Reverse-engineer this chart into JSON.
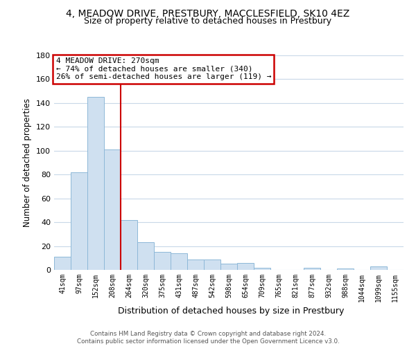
{
  "title": "4, MEADOW DRIVE, PRESTBURY, MACCLESFIELD, SK10 4EZ",
  "subtitle": "Size of property relative to detached houses in Prestbury",
  "xlabel": "Distribution of detached houses by size in Prestbury",
  "ylabel": "Number of detached properties",
  "bar_labels": [
    "41sqm",
    "97sqm",
    "152sqm",
    "208sqm",
    "264sqm",
    "320sqm",
    "375sqm",
    "431sqm",
    "487sqm",
    "542sqm",
    "598sqm",
    "654sqm",
    "709sqm",
    "765sqm",
    "821sqm",
    "877sqm",
    "932sqm",
    "988sqm",
    "1044sqm",
    "1099sqm",
    "1155sqm"
  ],
  "bar_values": [
    11,
    82,
    145,
    101,
    42,
    23,
    15,
    14,
    9,
    9,
    5,
    6,
    2,
    0,
    0,
    2,
    0,
    1,
    0,
    3,
    0
  ],
  "bar_color": "#cfe0f0",
  "bar_edge_color": "#8db8d8",
  "vline_color": "#cc0000",
  "vline_index": 4,
  "annotation_text": "4 MEADOW DRIVE: 270sqm\n← 74% of detached houses are smaller (340)\n26% of semi-detached houses are larger (119) →",
  "annotation_box_color": "#ffffff",
  "annotation_box_edge_color": "#cc0000",
  "ylim": [
    0,
    180
  ],
  "yticks": [
    0,
    20,
    40,
    60,
    80,
    100,
    120,
    140,
    160,
    180
  ],
  "footer_text": "Contains HM Land Registry data © Crown copyright and database right 2024.\nContains public sector information licensed under the Open Government Licence v3.0.",
  "bg_color": "#ffffff",
  "grid_color": "#c8d8e8"
}
